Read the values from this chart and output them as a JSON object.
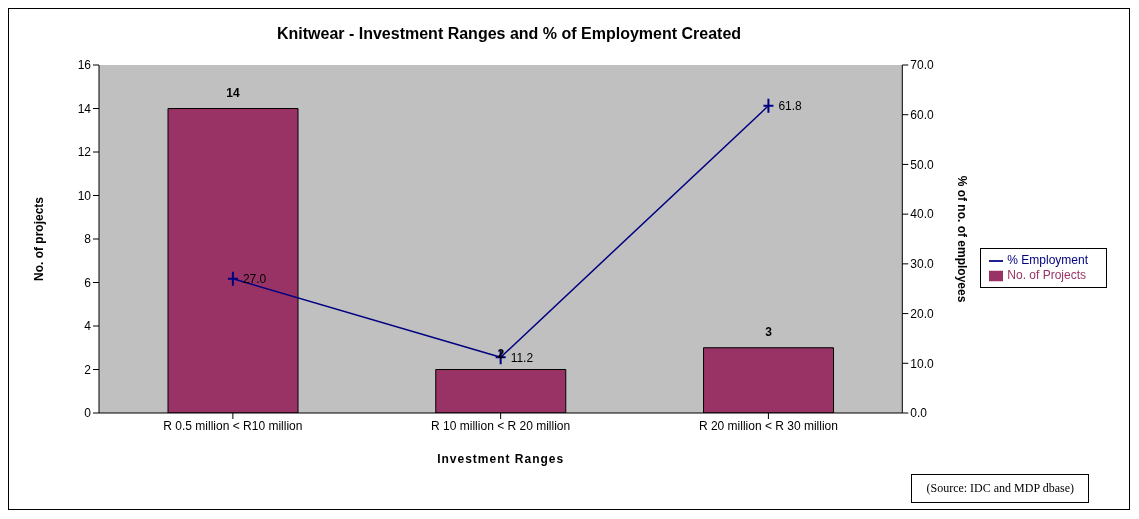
{
  "chart_data": {
    "type": "bar",
    "title": "Knitwear - Investment Ranges and % of Employment Created",
    "xlabel": "Investment Ranges",
    "ylabel": "No. of projects",
    "y2label": "% of no. of employees",
    "categories": [
      "R 0.5 million < R10 million",
      "R 10 million < R 20 million",
      "R 20 million < R 30 million"
    ],
    "series": [
      {
        "name": "No. of Projects",
        "color": "#993366",
        "values": [
          14,
          2,
          3
        ],
        "value_labels": [
          "14",
          "2",
          "3"
        ]
      },
      {
        "name": "% Employment",
        "type": "line",
        "axis": "y2",
        "color": "#000080",
        "values": [
          27.0,
          11.2,
          61.8
        ],
        "value_labels": [
          "27.0",
          "11.2",
          "61.8"
        ],
        "marker": "cross"
      }
    ],
    "ylim": [
      0,
      16
    ],
    "yticks": [
      0,
      2,
      4,
      6,
      8,
      10,
      12,
      14,
      16
    ],
    "y2lim": [
      0,
      70
    ],
    "y2ticks": [
      {
        "value": 0,
        "label": "0.0"
      },
      {
        "value": 10,
        "label": "10.0"
      },
      {
        "value": 20,
        "label": "20.0"
      },
      {
        "value": 30,
        "label": "30.0"
      },
      {
        "value": 40,
        "label": "40.0"
      },
      {
        "value": 50,
        "label": "50.0"
      },
      {
        "value": 60,
        "label": "60.0"
      },
      {
        "value": 70,
        "label": "70.0"
      }
    ],
    "legend": "right",
    "grid": false,
    "annotations": [
      "(Source: IDC and MDP dbase)"
    ]
  }
}
